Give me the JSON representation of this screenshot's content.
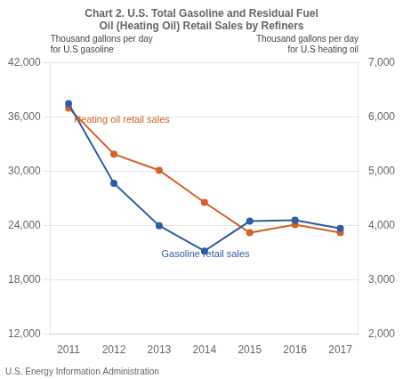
{
  "chart_data": {
    "type": "line",
    "title": [
      "Chart 2. U.S. Total Gasoline and Residual Fuel",
      "Oil (Heating Oil) Retail Sales by Refiners"
    ],
    "y_label": [
      "Thousand gallons per day",
      "for U.S gasoline"
    ],
    "y2_label": [
      "Thousand gallons per day",
      "for U.S heating oil"
    ],
    "source": "U.S. Energy Information Administration",
    "x": [
      2011,
      2012,
      2013,
      2014,
      2015,
      2016,
      2017
    ],
    "xlim": [
      2010.6,
      2017.4
    ],
    "xticks": [
      2011,
      2012,
      2013,
      2014,
      2015,
      2016,
      2017
    ],
    "ylim": [
      12000,
      42000
    ],
    "yticks": [
      {
        "value": 12000,
        "label": "12,000"
      },
      {
        "value": 18000,
        "label": "18,000"
      },
      {
        "value": 24000,
        "label": "24,000"
      },
      {
        "value": 30000,
        "label": "30,000"
      },
      {
        "value": 36000,
        "label": "36,000"
      },
      {
        "value": 42000,
        "label": "42,000"
      }
    ],
    "y2lim": [
      2000,
      7000
    ],
    "y2ticks": [
      {
        "value": 2000,
        "label": "2,000"
      },
      {
        "value": 3000,
        "label": "3,000"
      },
      {
        "value": 4000,
        "label": "4,000"
      },
      {
        "value": 5000,
        "label": "5,000"
      },
      {
        "value": 6000,
        "label": "6,000"
      },
      {
        "value": 7000,
        "label": "7,000"
      }
    ],
    "grid": true,
    "series": [
      {
        "name": "Gasoline retail sales",
        "color": "#2E5DA6",
        "marker": "circle",
        "values": [
          37500,
          28700,
          24000,
          21200,
          24500,
          24600,
          23700
        ]
      },
      {
        "name": "Heating oil retail sales",
        "color": "#D4622A",
        "marker": "circle",
        "axis": "y2",
        "values": [
          6170,
          5320,
          5020,
          4430,
          3870,
          4020,
          3870
        ]
      }
    ],
    "annotations": [
      {
        "text": "Heating oil retail sales",
        "x": 2011.12,
        "y": 35400,
        "color": "#D4622A"
      },
      {
        "text": "Gasoline retail sales",
        "x": 2013.05,
        "y": 20500,
        "color": "#2E5DA6"
      }
    ]
  }
}
